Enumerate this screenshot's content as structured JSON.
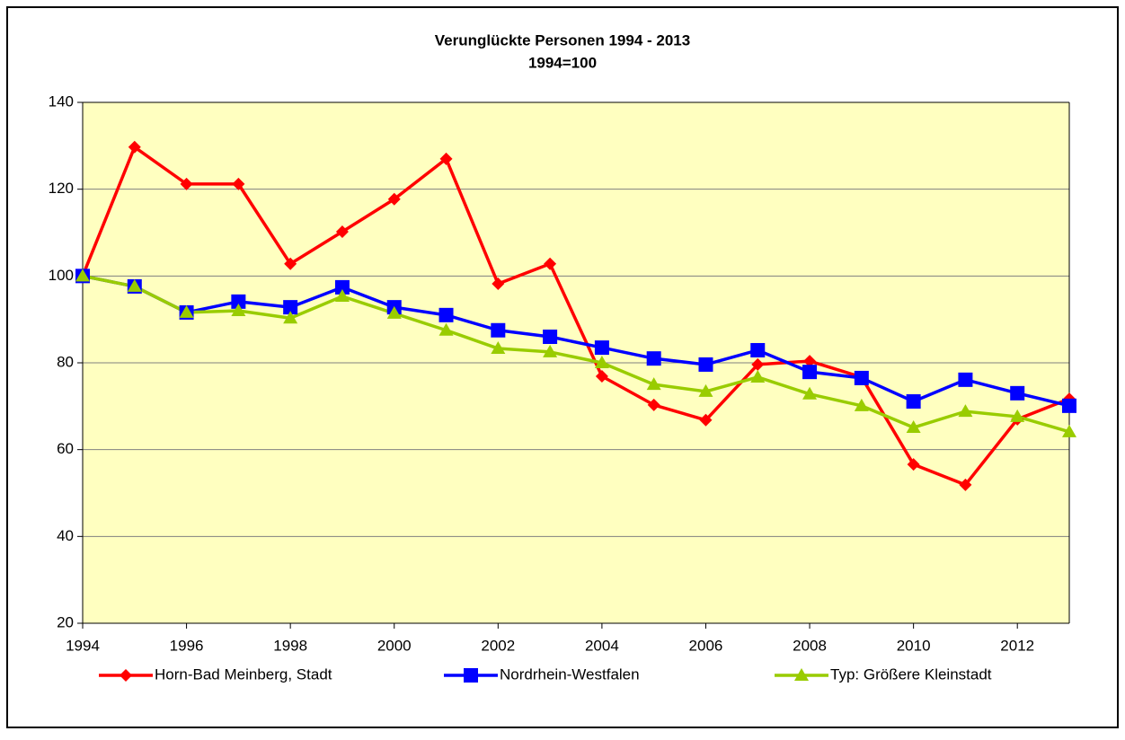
{
  "chart_data": {
    "type": "line",
    "title": "Verunglückte Personen 1994 - 2013",
    "subtitle": "1994=100",
    "x": [
      1994,
      1995,
      1996,
      1997,
      1998,
      1999,
      2000,
      2001,
      2002,
      2003,
      2004,
      2005,
      2006,
      2007,
      2008,
      2009,
      2010,
      2011,
      2012,
      2013
    ],
    "xlim": [
      1994,
      2013
    ],
    "xticks": [
      1994,
      1996,
      1998,
      2000,
      2002,
      2004,
      2006,
      2008,
      2010,
      2012
    ],
    "ylim": [
      20,
      140
    ],
    "yticks": [
      20,
      40,
      60,
      80,
      100,
      120,
      140
    ],
    "grid": true,
    "legend": "bottom",
    "series": [
      {
        "name": "Horn-Bad Meinberg, Stadt",
        "color": "#ff0000",
        "marker": "diamond",
        "values": [
          100,
          129.7,
          121.2,
          121.2,
          102.8,
          110.2,
          117.7,
          127,
          98.2,
          102.8,
          76.9,
          70.3,
          66.8,
          79.6,
          80.4,
          76.7,
          56.6,
          51.9,
          67,
          71.7
        ]
      },
      {
        "name": "Nordrhein-Westfalen",
        "color": "#0000ff",
        "marker": "square",
        "values": [
          100,
          97.6,
          91.6,
          94.1,
          92.8,
          97.4,
          92.8,
          91,
          87.5,
          86,
          83.5,
          81,
          79.6,
          82.9,
          77.9,
          76.5,
          71.1,
          76.1,
          73,
          70.1
        ]
      },
      {
        "name": "Typ: Größere Kleinstadt",
        "color": "#99cc00",
        "marker": "triangle",
        "values": [
          100,
          97.6,
          91.6,
          92,
          90.3,
          95.3,
          91.4,
          87.5,
          83.3,
          82.5,
          80,
          75,
          73.4,
          76.7,
          72.8,
          70.1,
          65.1,
          68.8,
          67.6,
          64.1
        ]
      }
    ]
  }
}
